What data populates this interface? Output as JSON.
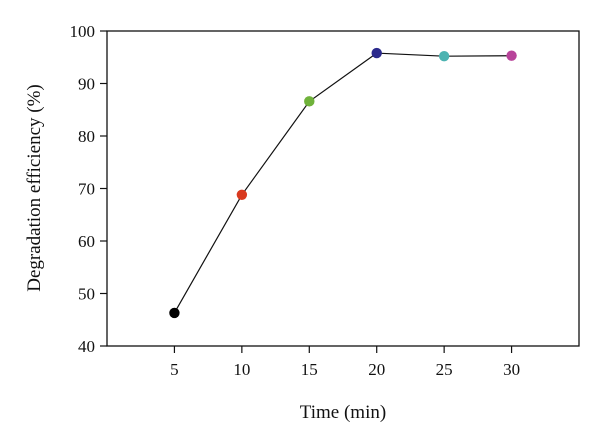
{
  "chart_data": {
    "type": "line",
    "title": "",
    "xlabel": "Time (min)",
    "ylabel": "Degradation efficiency (%)",
    "x": [
      5,
      10,
      15,
      20,
      25,
      30
    ],
    "series": [
      {
        "values": [
          46.3,
          68.8,
          86.6,
          95.8,
          95.2,
          95.3
        ],
        "line_color": "#111111",
        "point_colors": [
          "#000000",
          "#d9391f",
          "#6fb23a",
          "#2b2a8c",
          "#4cb3b1",
          "#b8439a"
        ]
      }
    ],
    "xlim": [
      0,
      35
    ],
    "ylim": [
      40,
      100
    ],
    "xticks": [
      5,
      10,
      15,
      20,
      25,
      30
    ],
    "yticks": [
      40,
      50,
      60,
      70,
      80,
      90,
      100
    ],
    "grid": false,
    "legend": "none"
  }
}
